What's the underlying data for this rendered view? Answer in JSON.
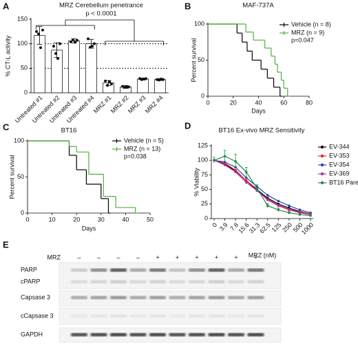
{
  "chart_data": [
    {
      "type": "bar",
      "panel_label": "A",
      "title": "MRZ Cerebellum penetrance",
      "annotation": "p < 0.0001",
      "y_label": "% CT-L activity",
      "categories": [
        "Untreated #1",
        "Untreated #2",
        "Untreated #3",
        "Untreated #4",
        "MRZ #1",
        "MRZ #2",
        "MRZ #3",
        "MRZ #4"
      ],
      "values": [
        117,
        87,
        106,
        100,
        20,
        12,
        28,
        27
      ],
      "errors": [
        18,
        15,
        4,
        9,
        5,
        3,
        2,
        2
      ],
      "points": [
        [
          125,
          120,
          92,
          128
        ],
        [
          95,
          80,
          70,
          100
        ],
        [
          104,
          108,
          103,
          107
        ],
        [
          110,
          93,
          95,
          100
        ],
        [
          24,
          15,
          22,
          18
        ],
        [
          13,
          11,
          12,
          12
        ],
        [
          29,
          27,
          28,
          29
        ],
        [
          27,
          26,
          28,
          27
        ]
      ],
      "ylim": [
        0,
        150
      ],
      "yticks": [
        0,
        50,
        100,
        150
      ],
      "reference_lines": [
        50,
        100
      ],
      "color": "#ffffff"
    },
    {
      "type": "survival",
      "panel_label": "B",
      "title": "MAF-737A",
      "x_label": "Days",
      "y_label": "Percent survival",
      "annotation": "p=0.047",
      "xlim": [
        0,
        80
      ],
      "xticks": [
        0,
        20,
        40,
        60,
        80
      ],
      "ylim": [
        0,
        100
      ],
      "yticks": [
        0,
        50,
        100
      ],
      "series": [
        {
          "name": "Vehicle (n = 8)",
          "color": "#000000",
          "x": [
            0,
            23,
            27,
            31,
            35,
            42,
            47,
            52,
            57
          ],
          "values": [
            100,
            87.5,
            75,
            62.5,
            50,
            37.5,
            25,
            12.5,
            0
          ]
        },
        {
          "name": "MRZ (n = 9)",
          "color": "#52ad3c",
          "x": [
            0,
            30,
            36,
            45,
            50,
            53,
            55,
            58,
            60,
            63
          ],
          "values": [
            100,
            88.9,
            77.8,
            66.7,
            55.6,
            44.4,
            33.3,
            22.2,
            11.1,
            0
          ]
        }
      ]
    },
    {
      "type": "survival",
      "panel_label": "C",
      "title": "BT16",
      "x_label": "Days",
      "y_label": "Percent survival",
      "annotation": "p=0.038",
      "xlim": [
        0,
        50
      ],
      "xticks": [
        0,
        10,
        20,
        30,
        40,
        50
      ],
      "ylim": [
        0,
        100
      ],
      "yticks": [
        0,
        50,
        100
      ],
      "series": [
        {
          "name": "Vehicle (n = 5)",
          "color": "#000000",
          "x": [
            0,
            17,
            20,
            24,
            30,
            33
          ],
          "values": [
            100,
            80,
            60,
            40,
            20,
            0
          ]
        },
        {
          "name": "MRZ (n = 13)",
          "color": "#52ad3c",
          "x": [
            0,
            17,
            20,
            25,
            31,
            36,
            44
          ],
          "values": [
            100,
            92.3,
            84.6,
            53.8,
            23.1,
            7.7,
            0
          ]
        }
      ]
    },
    {
      "type": "line",
      "panel_label": "D",
      "title": "BT16 Ex-vivo MRZ Sensitivity",
      "x_label": "MRZ (nM)",
      "y_label": "% Viability",
      "categories": [
        "0",
        "3.9",
        "7.8",
        "15.6",
        "31.3",
        "62.5",
        "125",
        "250",
        "500",
        "1000"
      ],
      "ylim": [
        0,
        125
      ],
      "yticks": [
        0,
        25,
        50,
        75,
        100,
        125
      ],
      "series": [
        {
          "name": "EV-344",
          "color": "#000000",
          "values": [
            100,
            93,
            82,
            65,
            50,
            35,
            25,
            18,
            12,
            8
          ]
        },
        {
          "name": "EV-353",
          "color": "#e0252b",
          "values": [
            100,
            95,
            83,
            65,
            48,
            32,
            22,
            15,
            10,
            7
          ]
        },
        {
          "name": "EV-354",
          "color": "#2b45a8",
          "values": [
            100,
            97,
            88,
            70,
            55,
            40,
            30,
            22,
            15,
            10
          ]
        },
        {
          "name": "EV-369",
          "color": "#b4289c",
          "values": [
            100,
            92,
            80,
            62,
            48,
            33,
            23,
            16,
            11,
            8
          ]
        },
        {
          "name": "BT16 Parental",
          "color": "#1f8a4c",
          "values": [
            100,
            107,
            98,
            80,
            52,
            22,
            15,
            10,
            7,
            5
          ],
          "errors": [
            5,
            10,
            12,
            8,
            6,
            4,
            3,
            2,
            2,
            2
          ]
        }
      ]
    }
  ],
  "blot": {
    "panel_label": "E",
    "treatment_label": "MRZ",
    "treatment": [
      "–",
      "–",
      "–",
      "–",
      "+",
      "+",
      "+",
      "+",
      "+",
      "+"
    ],
    "rows": [
      "PARP",
      "cPARP",
      "Capsase 3",
      "cCapsase 3",
      "GAPDH"
    ]
  }
}
